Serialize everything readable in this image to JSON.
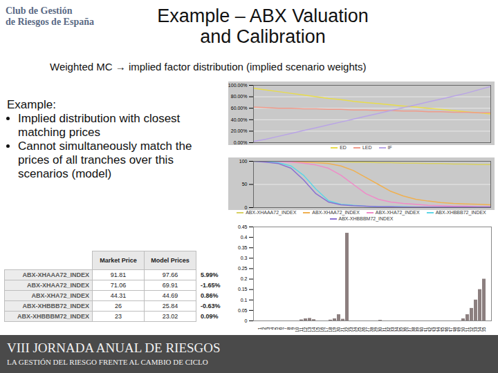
{
  "header": {
    "logo": [
      "Club de Gestión",
      "de Riesgos de España"
    ],
    "title": [
      "Example – ABX Valuation",
      "and Calibration"
    ]
  },
  "subtitle": "Weighted MC → implied factor distribution (implied scenario weights)",
  "bullets": {
    "heading": "Example:",
    "items": [
      "Implied distribution with closest matching prices",
      "Cannot simultaneously match the prices of all tranches over this scenarios (model)"
    ]
  },
  "table": {
    "columns": [
      "Market Price",
      "Model Prices"
    ],
    "rows": [
      {
        "name": "ABX-XHAAA72_INDEX",
        "market": 91.81,
        "model": 97.66,
        "diff": "5.99%"
      },
      {
        "name": "ABX-XHAA72_INDEX",
        "market": 71.06,
        "model": 69.91,
        "diff": "-1.65%"
      },
      {
        "name": "ABX-XHA72_INDEX",
        "market": 44.31,
        "model": 44.69,
        "diff": "0.86%"
      },
      {
        "name": "ABX-XHBBB72_INDEX",
        "market": 26,
        "model": 25.84,
        "diff": "-0.63%"
      },
      {
        "name": "ABX-XHBBBM72_INDEX",
        "market": 23,
        "model": 23.02,
        "diff": "0.09%"
      }
    ]
  },
  "chart_data": [
    {
      "type": "line",
      "x": [
        1,
        2,
        3,
        4,
        5,
        6,
        7,
        8,
        9,
        10,
        11,
        12,
        13,
        14,
        15,
        16,
        17,
        18,
        19,
        20
      ],
      "xlim": [
        1,
        20
      ],
      "tick_labels": "y",
      "ylim": [
        0,
        100
      ],
      "yticks": [
        {
          "value": 0,
          "label": "0.00%"
        },
        {
          "value": 20,
          "label": "20.00%"
        },
        {
          "value": 40,
          "label": "40.00%"
        },
        {
          "value": 60,
          "label": "60.00%"
        },
        {
          "value": 80,
          "label": "80.00%"
        },
        {
          "value": 100,
          "label": "100.00%"
        }
      ],
      "grid": true,
      "legend": "bottom",
      "series": [
        {
          "name": "ED",
          "color": "#e8dc4a",
          "values": [
            95,
            92,
            89,
            86,
            83,
            80,
            77,
            75,
            72,
            70,
            68,
            66,
            64,
            62,
            60,
            58,
            56,
            54,
            52,
            50
          ]
        },
        {
          "name": "LED",
          "color": "#f09a8a",
          "values": [
            62,
            61,
            60,
            60,
            59,
            59,
            58,
            58,
            57,
            57,
            56,
            56,
            55,
            55,
            54,
            54,
            53,
            53,
            52,
            52
          ]
        },
        {
          "name": "IF",
          "color": "#b9a4e6",
          "values": [
            2,
            6,
            11,
            16,
            21,
            26,
            31,
            36,
            41,
            46,
            51,
            56,
            61,
            66,
            71,
            76,
            81,
            86,
            92,
            98
          ]
        }
      ]
    },
    {
      "type": "line",
      "x": [
        1,
        2,
        3,
        4,
        5,
        6,
        7,
        8,
        9,
        10,
        11,
        12,
        13,
        14,
        15,
        16,
        17,
        18,
        19,
        20
      ],
      "xlim": [
        1,
        20
      ],
      "tick_labels": "y",
      "ylim": [
        0,
        100
      ],
      "yticks": [
        0,
        50,
        100
      ],
      "grid": true,
      "legend": "bottom",
      "series": [
        {
          "name": "ABX-XHAAA72_INDEX",
          "color": "#d8d060",
          "values": [
            100,
            100,
            100,
            100,
            100,
            100,
            99,
            99,
            98,
            98,
            97,
            97,
            96,
            96,
            95,
            95,
            94,
            94,
            93,
            93
          ]
        },
        {
          "name": "ABX-XHAA72_INDEX",
          "color": "#f0b050",
          "values": [
            100,
            100,
            100,
            99,
            98,
            97,
            95,
            90,
            80,
            65,
            50,
            35,
            25,
            18,
            14,
            11,
            9,
            8,
            7,
            6
          ]
        },
        {
          "name": "ABX-XHA72_INDEX",
          "color": "#f08ac8",
          "values": [
            100,
            100,
            99,
            98,
            96,
            92,
            85,
            70,
            50,
            30,
            18,
            12,
            9,
            7,
            5,
            4,
            3,
            3,
            2,
            2
          ]
        },
        {
          "name": "ABX-XHBBB72_INDEX",
          "color": "#5cd6e6",
          "values": [
            100,
            99,
            97,
            90,
            70,
            40,
            15,
            7,
            5,
            3,
            2,
            2,
            2,
            1,
            1,
            1,
            1,
            1,
            1,
            1
          ]
        },
        {
          "name": "ABX-XHBBBM72_INDEX",
          "color": "#8a6fd1",
          "values": [
            100,
            98,
            95,
            85,
            60,
            30,
            12,
            6,
            4,
            3,
            2,
            2,
            1,
            1,
            1,
            1,
            1,
            1,
            1,
            1
          ]
        }
      ]
    },
    {
      "type": "bar",
      "categories": [
        "1",
        "2",
        "3",
        "4",
        "5",
        "6",
        "7",
        "8",
        "9",
        "10",
        "11",
        "12",
        "13",
        "14",
        "15",
        "16",
        "17",
        "18",
        "19",
        "20",
        "21",
        "22",
        "23",
        "24",
        "25",
        "26",
        "27",
        "28",
        "29",
        "30",
        "31",
        "32",
        "33",
        "34",
        "35",
        "36",
        "37",
        "38",
        "39",
        "40",
        "41",
        "42",
        "43",
        "44",
        "45",
        "46",
        "47",
        "48",
        "49",
        "50",
        "51",
        "52",
        "53",
        "54",
        "55"
      ],
      "values": [
        0,
        0,
        0,
        0,
        0,
        0,
        0,
        0,
        0,
        0,
        0.005,
        0.01,
        0.012,
        0.006,
        0,
        0,
        0,
        0.004,
        0.01,
        0.03,
        0.008,
        0.42,
        0,
        0,
        0,
        0,
        0,
        0,
        0,
        0.003,
        0,
        0,
        0,
        0,
        0,
        0,
        0,
        0,
        0,
        0,
        0,
        0,
        0,
        0,
        0,
        0,
        0,
        0,
        0,
        0.01,
        0.03,
        0.06,
        0.1,
        0.15,
        0.2
      ],
      "color": "#8c7f7f",
      "ylim": [
        0,
        0.45
      ],
      "yticks": [
        0,
        0.05,
        0.1,
        0.15,
        0.2,
        0.25,
        0.3,
        0.35,
        0.4,
        0.45
      ],
      "grid": false
    }
  ],
  "footer": [
    "VIII JORNADA ANUAL DE RIESGOS",
    "LA GESTIÓN DEL RIESGO FRENTE AL CAMBIO DE CICLO"
  ]
}
